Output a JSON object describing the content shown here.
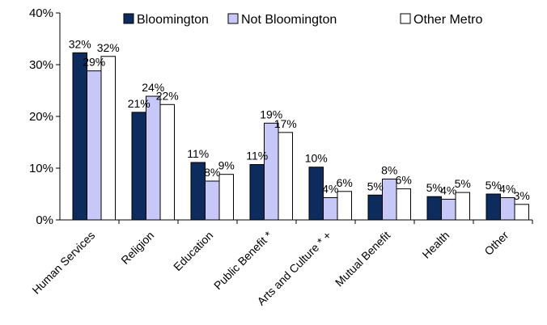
{
  "chart_data": {
    "type": "bar",
    "categories": [
      "Human Services",
      "Religion",
      "Education",
      "Public Benefit *",
      "Arts and Culture * +",
      "Mutual Benefit",
      "Health",
      "Other"
    ],
    "series": [
      {
        "name": "Bloomington",
        "color": "#0d2b5c",
        "values": [
          32.3,
          20.8,
          11.1,
          10.7,
          10.2,
          4.8,
          4.5,
          5.0
        ],
        "labels": [
          "32%",
          "21%",
          "11%",
          "11%",
          "10%",
          "5%",
          "5%",
          "5%"
        ]
      },
      {
        "name": "Not Bloomington",
        "color": "#c7c8f8",
        "values": [
          28.8,
          23.9,
          7.5,
          18.7,
          4.3,
          7.9,
          4.0,
          4.3
        ],
        "labels": [
          "29%",
          "24%",
          "8%",
          "19%",
          "4%",
          "8%",
          "4%",
          "4%"
        ]
      },
      {
        "name": "Other Metro",
        "color": "#ffffff",
        "values": [
          31.6,
          22.3,
          8.8,
          16.9,
          5.5,
          6.0,
          5.3,
          3.0
        ],
        "labels": [
          "32%",
          "22%",
          "9%",
          "17%",
          "6%",
          "6%",
          "5%",
          "3%"
        ]
      }
    ],
    "yticks": [
      "0%",
      "10%",
      "20%",
      "30%",
      "40%"
    ],
    "ylim": [
      0,
      40
    ],
    "legend_position": "top-right",
    "grid": false
  }
}
